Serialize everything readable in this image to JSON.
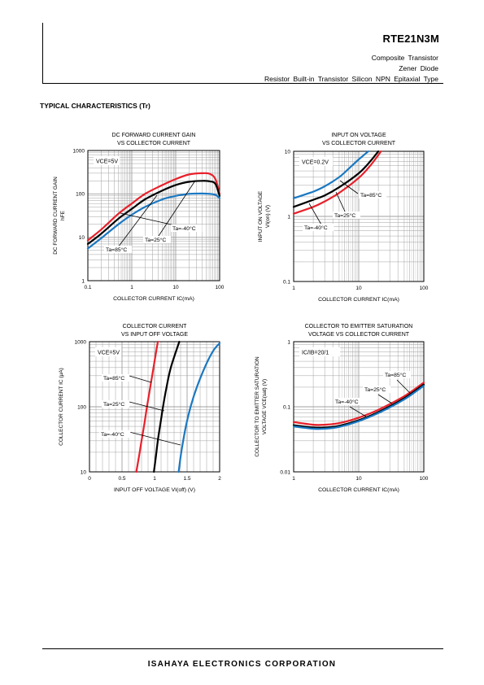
{
  "header": {
    "part_number": "RTE21N3M",
    "line1": "Composite Transistor",
    "line2": "Zener Diode",
    "line3": "Resistor Built-in Transistor Silicon NPN Epitaxial Type"
  },
  "section_title": "TYPICAL CHARACTERISTICS (Tr)",
  "footer": {
    "company": "ISAHAYA ELECTRONICS CORPORATION"
  },
  "colors": {
    "ta85": "#e8202a",
    "ta25": "#000000",
    "ta_m40": "#1a78c2",
    "grid": "#a0a0a0"
  },
  "chart_data": [
    {
      "type": "line",
      "title": [
        "DC FORWARD CURRENT GAIN",
        "VS COLLECTOR CURRENT"
      ],
      "xlabel": "COLLECTOR CURRENT  IC(mA)",
      "ylabel": [
        "DC FORWARD CURRENT GAIN",
        "hFE"
      ],
      "xscale": "log",
      "yscale": "log",
      "xlim": [
        0.1,
        100
      ],
      "ylim": [
        1,
        1000
      ],
      "xticks": [
        "0.1",
        "1",
        "10",
        "100"
      ],
      "yticks": [
        "1",
        "10",
        "100",
        "1000"
      ],
      "condition": "VCE=5V",
      "series": [
        {
          "name": "Ta=85°C",
          "color": "red",
          "x": [
            0.1,
            0.2,
            0.5,
            1,
            2,
            5,
            10,
            20,
            40,
            60,
            80,
            100
          ],
          "y": [
            8.5,
            15,
            35,
            60,
            100,
            160,
            220,
            280,
            300,
            290,
            220,
            100
          ]
        },
        {
          "name": "Ta=25°C",
          "color": "black",
          "x": [
            0.1,
            0.2,
            0.5,
            1,
            2,
            5,
            10,
            20,
            40,
            60,
            80,
            100
          ],
          "y": [
            7,
            12,
            27,
            45,
            75,
            120,
            160,
            190,
            200,
            195,
            170,
            90
          ]
        },
        {
          "name": "Ta=-40°C",
          "color": "blue",
          "x": [
            0.1,
            0.2,
            0.5,
            1,
            2,
            5,
            10,
            20,
            40,
            60,
            80,
            100
          ],
          "y": [
            5.5,
            9.5,
            20,
            33,
            50,
            75,
            90,
            100,
            102,
            100,
            95,
            80
          ]
        }
      ],
      "annotations": [
        "Ta=85°C",
        "Ta=25°C",
        "Ta=-40°C"
      ]
    },
    {
      "type": "line",
      "title": [
        "INPUT ON VOLTAGE",
        "VS COLLECTOR CURRENT"
      ],
      "xlabel": "COLLECTOR CURRENT  IC(mA)",
      "ylabel": [
        "INPUT ON VOLTAGE",
        "VI(on) (V)"
      ],
      "xscale": "log",
      "yscale": "log",
      "xlim": [
        1,
        100
      ],
      "ylim": [
        0.1,
        10
      ],
      "xticks": [
        "1",
        "10",
        "100"
      ],
      "yticks": [
        "0.1",
        "1",
        "10"
      ],
      "condition": "VCE=0.2V",
      "series": [
        {
          "name": "Ta=-40°C",
          "color": "blue",
          "x": [
            1,
            2,
            3,
            5,
            7,
            10,
            14
          ],
          "y": [
            1.9,
            2.4,
            2.9,
            4.0,
            5.4,
            7.5,
            10
          ]
        },
        {
          "name": "Ta=25°C",
          "color": "black",
          "x": [
            1,
            2,
            3,
            5,
            10,
            15,
            20
          ],
          "y": [
            1.4,
            1.8,
            2.1,
            2.8,
            4.6,
            7.0,
            10
          ]
        },
        {
          "name": "Ta=85°C",
          "color": "red",
          "x": [
            1,
            2,
            3,
            5,
            10,
            15,
            22
          ],
          "y": [
            1.1,
            1.4,
            1.7,
            2.3,
            3.9,
            6.0,
            10
          ]
        }
      ],
      "annotations": [
        "Ta=85°C",
        "Ta=25°C",
        "Ta=-40°C"
      ]
    },
    {
      "type": "line",
      "title": [
        "COLLECTOR CURRENT",
        "VS INPUT OFF VOLTAGE"
      ],
      "xlabel": "INPUT OFF VOLTAGE VI(off) (V)",
      "ylabel": [
        "COLLECTOR CURRENT IC (μA)"
      ],
      "xscale": "linear",
      "yscale": "log",
      "xlim": [
        0,
        2
      ],
      "ylim": [
        10,
        1000
      ],
      "xticks": [
        "0",
        "0.5",
        "1",
        "1.5",
        "2"
      ],
      "yticks": [
        "10",
        "100",
        "1000"
      ],
      "condition": "VCE=5V",
      "series": [
        {
          "name": "Ta=85°C",
          "color": "red",
          "x": [
            0.72,
            0.76,
            0.8,
            0.84,
            0.88,
            0.93,
            1.0,
            1.05
          ],
          "y": [
            10,
            17,
            30,
            52,
            95,
            190,
            500,
            1000
          ]
        },
        {
          "name": "Ta=25°C",
          "color": "black",
          "x": [
            0.99,
            1.02,
            1.05,
            1.09,
            1.13,
            1.18,
            1.25,
            1.38
          ],
          "y": [
            10,
            17,
            30,
            55,
            100,
            190,
            400,
            1000
          ]
        },
        {
          "name": "Ta=-40°C",
          "color": "blue",
          "x": [
            1.37,
            1.4,
            1.44,
            1.49,
            1.56,
            1.65,
            1.78,
            1.9,
            2.0
          ],
          "y": [
            10,
            17,
            30,
            55,
            105,
            200,
            420,
            720,
            950
          ]
        }
      ],
      "annotations": [
        "Ta=85°C",
        "Ta=25°C",
        "Ta=-40°C"
      ]
    },
    {
      "type": "line",
      "title": [
        "COLLECTOR TO EMITTER SATURATION",
        "VOLTAGE VS COLLECTOR CURRENT"
      ],
      "xlabel": "COLLECTOR CURRENT  IC(mA)",
      "ylabel": [
        "COLLECTOR TO EMITTER SATURATION",
        "VOLTAGE VCE(sat) (V)"
      ],
      "xscale": "log",
      "yscale": "log",
      "xlim": [
        1,
        100
      ],
      "ylim": [
        0.01,
        1
      ],
      "xticks": [
        "1",
        "10",
        "100"
      ],
      "yticks": [
        "0.01",
        "0.1",
        "1"
      ],
      "condition": "IC/IB=20/1",
      "series": [
        {
          "name": "Ta=85°C",
          "color": "red",
          "x": [
            1,
            2,
            3,
            5,
            10,
            20,
            50,
            100
          ],
          "y": [
            0.058,
            0.053,
            0.053,
            0.056,
            0.068,
            0.09,
            0.145,
            0.235
          ]
        },
        {
          "name": "Ta=25°C",
          "color": "black",
          "x": [
            1,
            2,
            3,
            5,
            10,
            20,
            50,
            100
          ],
          "y": [
            0.052,
            0.048,
            0.048,
            0.051,
            0.062,
            0.083,
            0.135,
            0.22
          ]
        },
        {
          "name": "Ta=-40°C",
          "color": "blue",
          "x": [
            1,
            2,
            3,
            5,
            10,
            20,
            50,
            100
          ],
          "y": [
            0.05,
            0.046,
            0.046,
            0.049,
            0.06,
            0.08,
            0.13,
            0.21
          ]
        }
      ],
      "annotations": [
        "Ta=85°C",
        "Ta=25°C",
        "Ta=-40°C"
      ]
    }
  ]
}
